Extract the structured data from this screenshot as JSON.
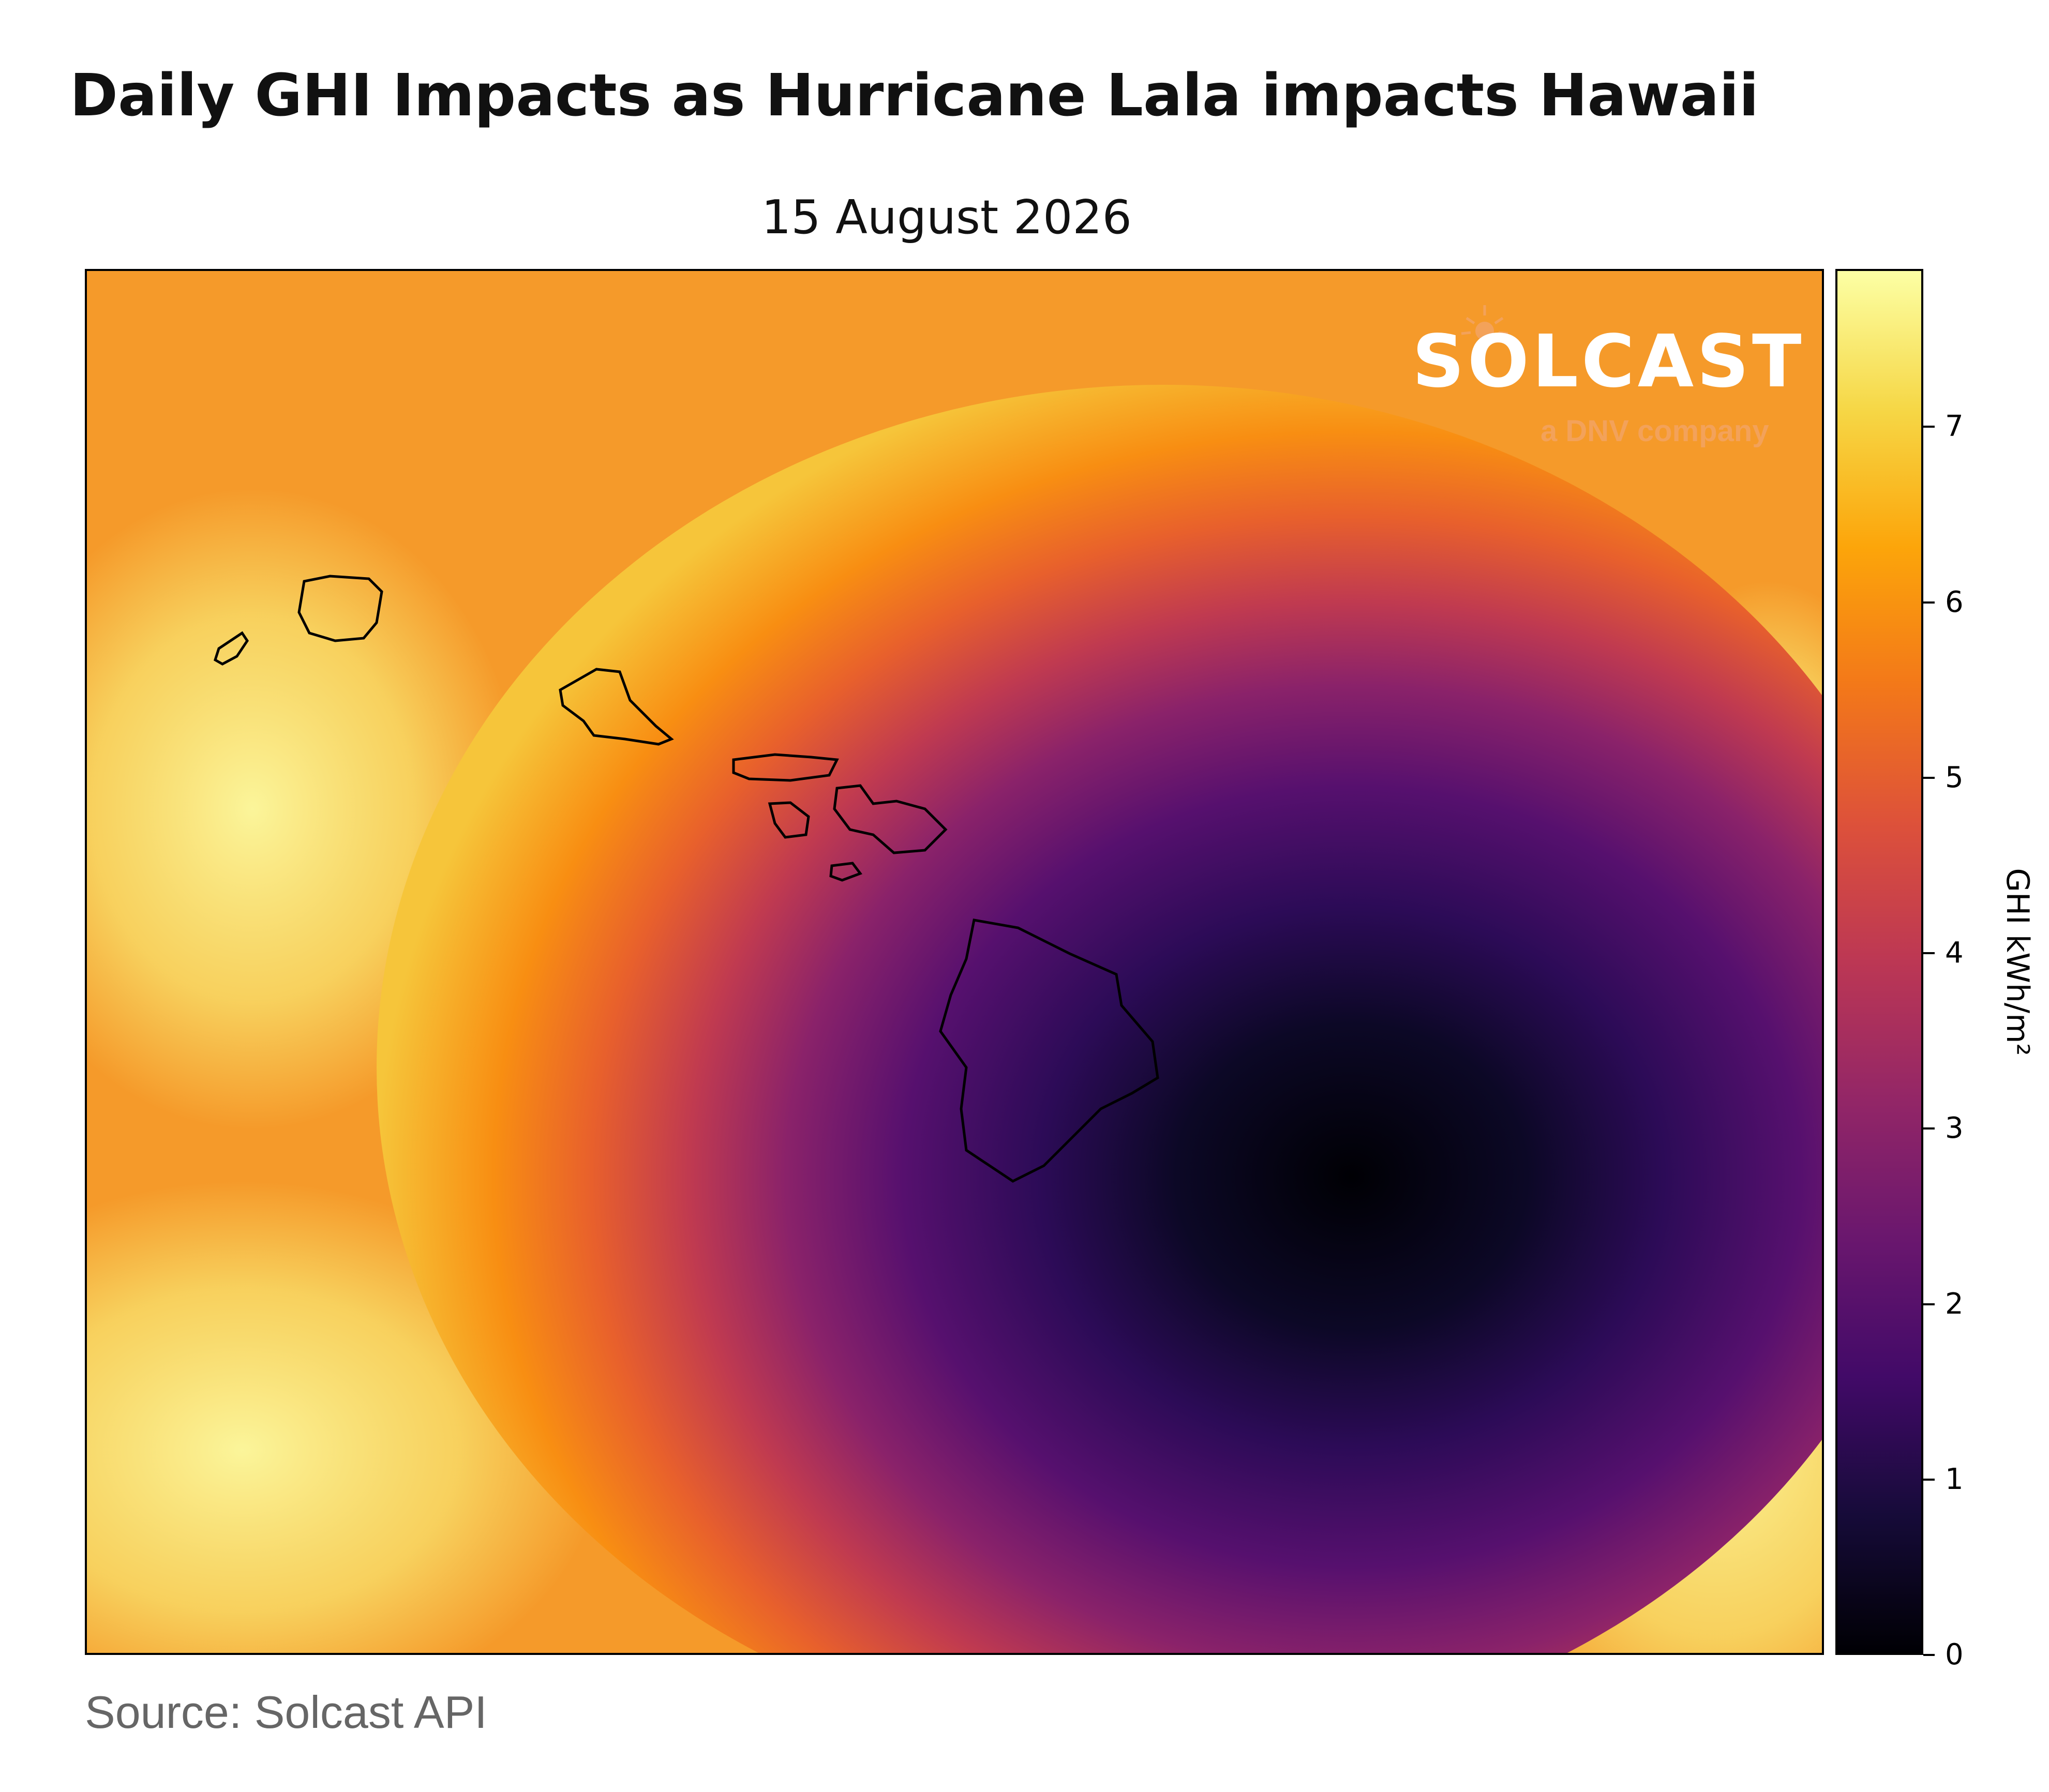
{
  "title": "Daily GHI Impacts as Hurricane Lala impacts Hawaii",
  "subtitle": "15 August 2026",
  "logo": {
    "wordmark": "SOLCAST",
    "tagline": "a DNV company"
  },
  "colorbar": {
    "label": "GHI kWh/m²",
    "ticks": [
      "0",
      "1",
      "2",
      "3",
      "4",
      "5",
      "6",
      "7"
    ],
    "colormap": "inferno",
    "range": [
      0,
      7.9
    ]
  },
  "source": "Source: Solcast API",
  "colors": {
    "logo_accent": "#f3a25a",
    "coastline": "#000000"
  }
}
